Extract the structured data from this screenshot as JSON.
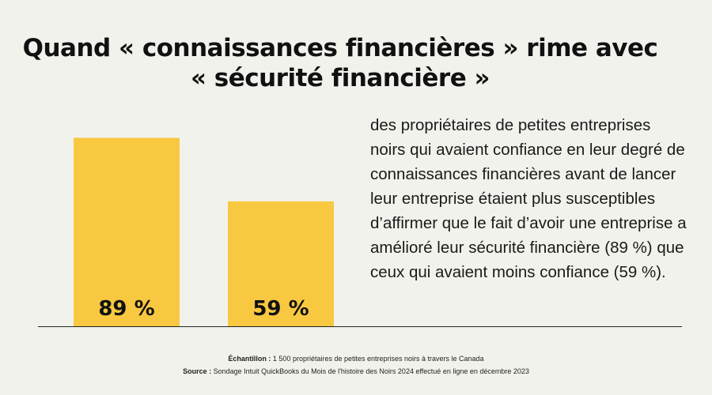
{
  "title": {
    "line1": "Quand « connaissances financières » rime avec",
    "line2": "« sécurité financière »"
  },
  "description": "des propriétaires de petites entreprises noirs qui avaient confiance en leur degré de connaissances financières avant de lancer leur entreprise étaient plus susceptibles d’affirmer que le fait d’avoir une entreprise a amélioré leur sécurité financière (89 %) que ceux qui avaient moins confiance (59 %).",
  "footnotes": {
    "sample_label": "Échantillon :",
    "sample_text": " 1 500 propriétaires de petites entreprises noirs à travers le Canada",
    "source_label": "Source :",
    "source_text": " Sondage Intuit QuickBooks du Mois de l'histoire des Noirs 2024 effectué en ligne en décembre 2023"
  },
  "colors": {
    "background": "#f2f2ed",
    "bar": "#f8c841",
    "text": "#111111",
    "baseline": "#222222"
  },
  "chart_data": {
    "type": "bar",
    "categories": [
      "",
      ""
    ],
    "values": [
      89,
      59
    ],
    "data_labels": [
      "89 %",
      "59 %"
    ],
    "ylim": [
      0,
      100
    ],
    "grid": false,
    "xlabel": "",
    "ylabel": ""
  }
}
